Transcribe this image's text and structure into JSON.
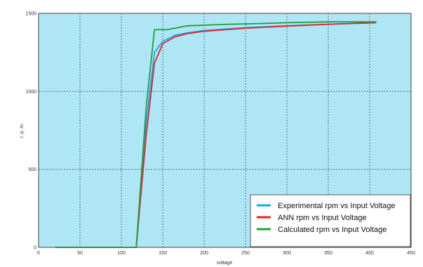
{
  "chart_data": {
    "type": "line",
    "xlabel": "voltage",
    "ylabel": "r. p. m.",
    "xlim": [
      0,
      450
    ],
    "ylim": [
      0,
      1500
    ],
    "xticks": [
      0,
      50,
      100,
      150,
      200,
      250,
      300,
      350,
      400,
      450
    ],
    "yticks": [
      0,
      500,
      1000,
      1500
    ],
    "grid": true,
    "background_color": "#aee6f6",
    "legend_position": "bottom-right",
    "series": [
      {
        "name": "Experimental rpm vs Input Voltage",
        "color": "#1aa7e0",
        "x": [
          20,
          118,
          130,
          140,
          150,
          165,
          180,
          200,
          250,
          300,
          350,
          408
        ],
        "y": [
          0,
          0,
          800,
          1250,
          1320,
          1360,
          1375,
          1390,
          1408,
          1420,
          1430,
          1440
        ]
      },
      {
        "name": "ANN rpm vs Input Voltage",
        "color": "#e8202a",
        "x": [
          20,
          118,
          130,
          140,
          150,
          165,
          180,
          200,
          250,
          300,
          350,
          408
        ],
        "y": [
          0,
          0,
          720,
          1180,
          1305,
          1350,
          1370,
          1385,
          1405,
          1418,
          1430,
          1440
        ]
      },
      {
        "name": "Calculated rpm vs Input Voltage",
        "color": "#1f9e3c",
        "x": [
          20,
          118,
          130,
          140,
          155,
          180,
          230,
          270,
          300,
          350,
          408
        ],
        "y": [
          0,
          0,
          900,
          1395,
          1395,
          1420,
          1430,
          1435,
          1440,
          1445,
          1445
        ]
      }
    ]
  }
}
